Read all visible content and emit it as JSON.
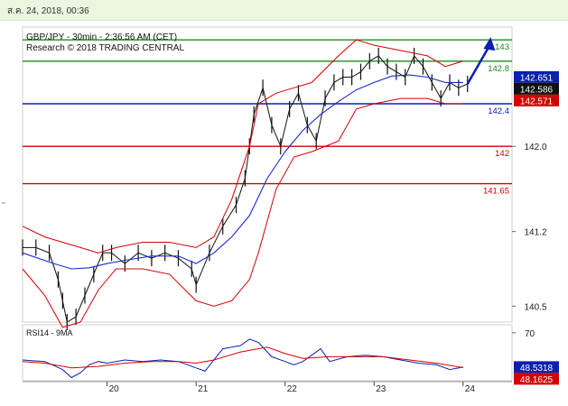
{
  "header": {
    "datetime": "ส.ค. 24, 2018, 00:36"
  },
  "colors": {
    "green_level": "#1f8a1f",
    "blue_level": "#0b1fb0",
    "red_level": "#d40000",
    "price_box": "#0b1fb0",
    "current_box": "#111111",
    "low_box": "#d40000",
    "bollinger": "#d40000",
    "moving_average": "#1b2bd0",
    "candles": "#111111",
    "rsi_line": "#0b1fb0",
    "rsi_ma": "#d40000",
    "arrow": "#0b1fb0"
  },
  "chart_data": [
    {
      "type": "line",
      "title": "GBP/JPY - 30min - 2:36:56 AM (CET)",
      "subtitle": "Research © 2018 TRADING CENTRAL",
      "ylim": [
        140.35,
        143.12
      ],
      "y_ticks": [
        142.0,
        141.2,
        140.5
      ],
      "y_tick_labels": [
        "142.0",
        "141.2",
        "140.5"
      ],
      "x_ticks": [
        {
          "label": "20",
          "at": 20
        },
        {
          "label": "21",
          "at": 21
        },
        {
          "label": "22",
          "at": 22
        },
        {
          "label": "23",
          "at": 23
        },
        {
          "label": "24",
          "at": 24
        }
      ],
      "xlim": [
        19.05,
        24.55
      ],
      "levels": [
        {
          "label": "143",
          "value": 143.0,
          "color": "green"
        },
        {
          "label": "142.8",
          "value": 142.8,
          "color": "green"
        },
        {
          "label": "142.4",
          "value": 142.4,
          "color": "blue"
        },
        {
          "label": "142",
          "value": 142.0,
          "color": "red"
        },
        {
          "label": "141.65",
          "value": 141.65,
          "color": "red"
        }
      ],
      "price_tags": [
        {
          "label": "142.651",
          "value": 142.651,
          "kind": "blue"
        },
        {
          "label": "142.586",
          "value": 142.586,
          "kind": "black"
        },
        {
          "label": "142.571",
          "value": 142.571,
          "kind": "red"
        }
      ],
      "series": [
        {
          "kind": "close",
          "x": [
            19.05,
            19.2,
            19.35,
            19.45,
            19.5,
            19.55,
            19.65,
            19.75,
            19.85,
            19.95,
            20.05,
            20.2,
            20.35,
            20.5,
            20.65,
            20.8,
            20.95,
            21.0,
            21.15,
            21.3,
            21.45,
            21.55,
            21.6,
            21.65,
            21.75,
            21.85,
            21.95,
            22.05,
            22.15,
            22.25,
            22.35,
            22.45,
            22.55,
            22.65,
            22.75,
            22.85,
            22.95,
            23.05,
            23.15,
            23.25,
            23.35,
            23.45,
            23.55,
            23.65,
            23.75,
            23.85,
            23.95,
            24.05
          ],
          "values": [
            141.05,
            141.05,
            141.0,
            140.75,
            140.55,
            140.35,
            140.4,
            140.6,
            140.8,
            141.0,
            141.0,
            140.9,
            141.0,
            140.95,
            141.0,
            140.95,
            140.85,
            140.7,
            141.0,
            141.25,
            141.45,
            141.7,
            142.0,
            142.3,
            142.55,
            142.2,
            142.0,
            142.35,
            142.5,
            142.2,
            142.05,
            142.45,
            142.6,
            142.65,
            142.65,
            142.7,
            142.8,
            142.85,
            142.75,
            142.7,
            142.65,
            142.85,
            142.75,
            142.6,
            142.45,
            142.6,
            142.55,
            142.586
          ]
        },
        {
          "kind": "moving_average",
          "x": [
            19.05,
            19.4,
            19.6,
            19.8,
            20.0,
            20.2,
            20.5,
            20.8,
            21.0,
            21.2,
            21.4,
            21.6,
            21.8,
            22.0,
            22.2,
            22.4,
            22.6,
            22.8,
            23.0,
            23.2,
            23.4,
            23.6,
            23.8,
            24.0
          ],
          "values": [
            141.0,
            140.9,
            140.85,
            140.86,
            140.9,
            140.93,
            140.97,
            140.97,
            140.9,
            141.0,
            141.15,
            141.35,
            141.7,
            141.95,
            142.15,
            142.3,
            142.42,
            142.53,
            142.6,
            142.66,
            142.67,
            142.65,
            142.6,
            142.6
          ]
        },
        {
          "kind": "bollinger_upper",
          "x": [
            19.05,
            19.3,
            19.5,
            19.7,
            19.9,
            20.1,
            20.4,
            20.7,
            21.0,
            21.2,
            21.4,
            21.6,
            21.7,
            21.9,
            22.1,
            22.3,
            22.6,
            22.8,
            23.0,
            23.3,
            23.6,
            23.8,
            24.0
          ],
          "values": [
            141.25,
            141.15,
            141.1,
            141.05,
            141.0,
            141.05,
            141.1,
            141.1,
            141.05,
            141.15,
            141.5,
            142.0,
            142.4,
            142.5,
            142.55,
            142.6,
            142.85,
            143.0,
            142.95,
            142.9,
            142.85,
            142.75,
            142.8
          ]
        },
        {
          "kind": "bollinger_lower",
          "x": [
            19.05,
            19.3,
            19.5,
            19.7,
            19.9,
            20.1,
            20.4,
            20.7,
            21.0,
            21.2,
            21.4,
            21.6,
            21.7,
            21.9,
            22.1,
            22.3,
            22.6,
            22.8,
            23.0,
            23.3,
            23.6,
            23.8,
            24.0
          ],
          "values": [
            140.85,
            140.6,
            140.3,
            140.35,
            140.65,
            140.85,
            140.85,
            140.8,
            140.55,
            140.5,
            140.55,
            140.75,
            141.0,
            141.6,
            141.9,
            141.95,
            142.05,
            142.35,
            142.4,
            142.45,
            142.45,
            142.4,
            142.4
          ]
        }
      ],
      "forecast_arrow": {
        "x": [
          24.05,
          24.3
        ],
        "values": [
          142.586,
          143.0
        ]
      }
    },
    {
      "type": "line",
      "title": "RSI14 - 9MA",
      "ylim": [
        40,
        75
      ],
      "y_ticks": [
        70
      ],
      "y_tick_labels": [
        "70"
      ],
      "price_tags": [
        {
          "label": "48.5318",
          "value": 48.5318,
          "kind": "blue"
        },
        {
          "label": "48.1625",
          "value": 48.1625,
          "kind": "red"
        }
      ],
      "series": [
        {
          "kind": "rsi",
          "x": [
            19.05,
            19.3,
            19.5,
            19.6,
            19.7,
            19.8,
            19.9,
            20.0,
            20.2,
            20.4,
            20.6,
            20.8,
            21.0,
            21.1,
            21.3,
            21.5,
            21.6,
            21.7,
            21.85,
            22.0,
            22.1,
            22.2,
            22.4,
            22.5,
            22.7,
            22.9,
            23.1,
            23.3,
            23.5,
            23.7,
            23.85,
            24.0
          ],
          "values": [
            53,
            52,
            47,
            42,
            45,
            50,
            52,
            51,
            53,
            52,
            53,
            52,
            48,
            46,
            60,
            62,
            66,
            64,
            55,
            52,
            50,
            52,
            60,
            52,
            55,
            56,
            55,
            53,
            51,
            50,
            47,
            48.5318
          ]
        },
        {
          "kind": "rsi_ma",
          "x": [
            19.05,
            19.3,
            19.6,
            19.9,
            20.2,
            20.5,
            20.8,
            21.0,
            21.2,
            21.5,
            21.8,
            22.0,
            22.2,
            22.5,
            22.8,
            23.1,
            23.4,
            23.7,
            24.0
          ],
          "values": [
            52,
            51,
            48,
            49,
            51,
            52,
            52,
            51,
            53,
            58,
            61,
            57,
            54,
            55,
            55,
            55,
            53,
            51,
            48.1625
          ]
        }
      ]
    }
  ]
}
